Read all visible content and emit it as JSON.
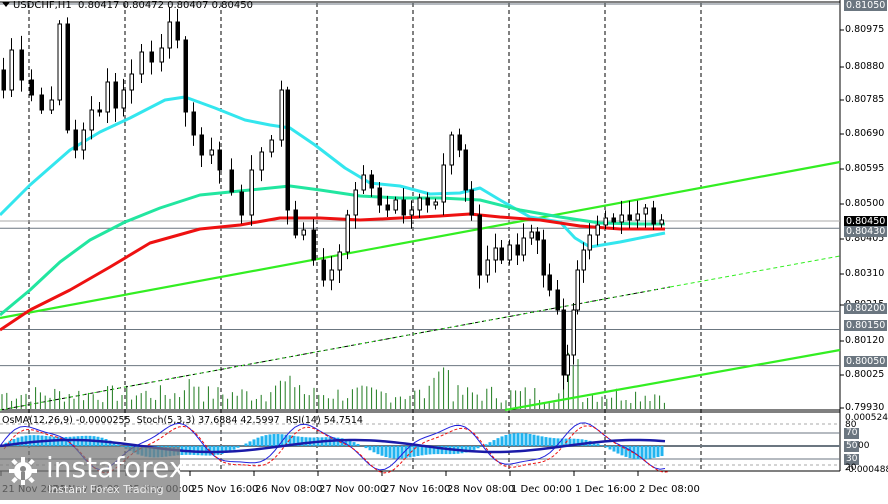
{
  "header": {
    "symbol": "USDCHF,H1",
    "ohlc": "0.80417 0.80472 0.80407 0.80450"
  },
  "indicators_header": {
    "osma": "OsMA(12,26,9) -0.0000255",
    "stoch": "Stoch(5,3,3) 37.6884 42.5997",
    "rsi": "RSI(14) 54.7514"
  },
  "logo": {
    "name": "instaforex",
    "tagline": "Instant Forex Trading"
  },
  "colors": {
    "ema_fast": "#33e6ee",
    "ema_mid": "#22e6a0",
    "ema_slow": "#ee1111",
    "trendline": "#33ee22",
    "volume": "#1e7a1e",
    "osma_hist": "#22b4f0",
    "stoch_main": "#2222dd",
    "stoch_signal": "#ee1111",
    "rsi": "#1a1aa8",
    "level_line": "#6b7680"
  },
  "chart_data": {
    "type": "candlestick",
    "title": "USDCHF,H1",
    "last_ohlc": {
      "open": 0.80417,
      "high": 0.80472,
      "low": 0.80407,
      "close": 0.8045
    },
    "ylim": [
      0.7993,
      0.8105
    ],
    "y_ticks": [
      "0.80975",
      "0.80880",
      "0.80785",
      "0.80690",
      "0.80595",
      "0.80500",
      "0.80405",
      "0.80310",
      "0.80215",
      "0.80120",
      "0.80025",
      "0.79930"
    ],
    "price_tags": [
      {
        "label": "0.81050",
        "style": "gray"
      },
      {
        "label": "0.80450",
        "style": "black"
      },
      {
        "label": "0.80430",
        "style": "gray"
      },
      {
        "label": "0.80200",
        "style": "gray"
      },
      {
        "label": "0.80150",
        "style": "gray"
      },
      {
        "label": "0.80050",
        "style": "gray"
      }
    ],
    "x_ticks": [
      "21 Nov 2025",
      "24 Nov 08:00",
      "25 Nov 00:00",
      "25 Nov 16:00",
      "26 Nov 08:00",
      "27 Nov 00:00",
      "27 Nov 16:00",
      "28 Nov 08:00",
      "1 Dec 00:00",
      "1 Dec 16:00",
      "2 Dec 08:00"
    ],
    "moving_averages": [
      {
        "name": "EMA fast (cyan)",
        "color": "#33e6ee"
      },
      {
        "name": "EMA mid (aqua-green)",
        "color": "#22e6a0"
      },
      {
        "name": "EMA slow (red)",
        "color": "#ee1111"
      }
    ],
    "horizontal_levels": [
      0.8105,
      0.8045,
      0.8043,
      0.802,
      0.8015,
      0.8005
    ],
    "subwindow": {
      "osma": -2.55e-05,
      "stoch_main": 37.6884,
      "stoch_signal": 42.5997,
      "rsi": 54.7514,
      "y_max_label": "0.0005246",
      "y_min_label": "-0.000488",
      "levels": [
        "80",
        "70",
        "50",
        "30",
        "20"
      ],
      "level_50_suffix": "00"
    }
  }
}
